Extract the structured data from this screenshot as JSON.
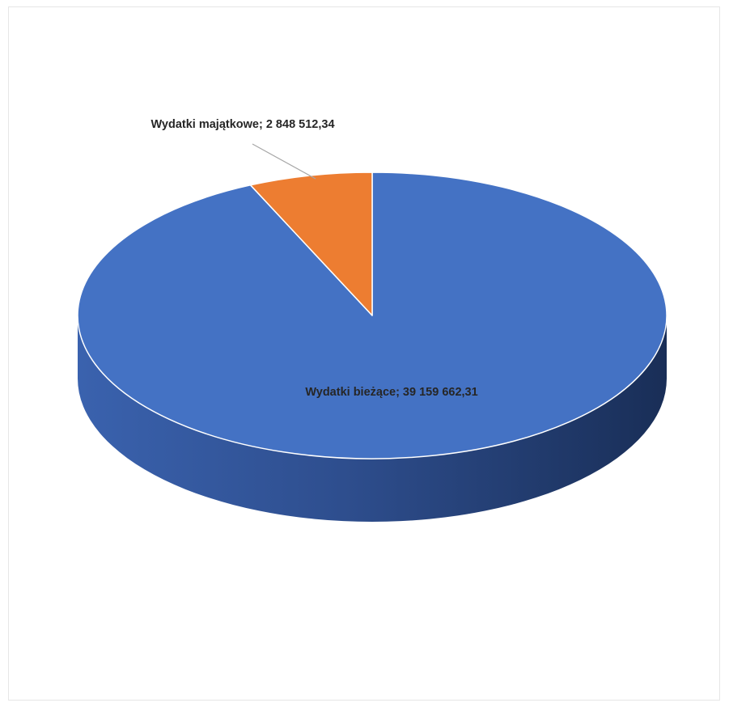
{
  "chart_data": {
    "type": "pie",
    "title": "",
    "three_d": true,
    "start": "12 o'clock",
    "direction": "clockwise",
    "data_labels": "category; value",
    "slices": [
      {
        "name": "Wydatki bieżące",
        "value": 39159662.31,
        "label": "Wydatki bieżące; 39 159 662,31",
        "color": "#4472C4"
      },
      {
        "name": "Wydatki majątkowe",
        "value": 2848512.34,
        "label": "Wydatki majątkowe; 2 848 512,34",
        "color": "#ED7D31"
      }
    ]
  }
}
